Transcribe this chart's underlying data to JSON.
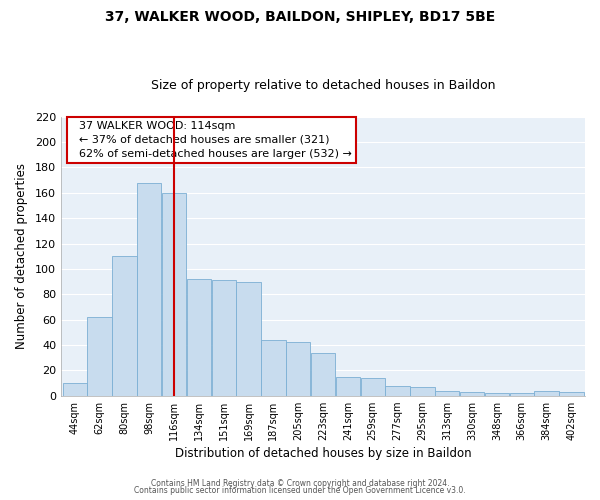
{
  "title": "37, WALKER WOOD, BAILDON, SHIPLEY, BD17 5BE",
  "subtitle": "Size of property relative to detached houses in Baildon",
  "xlabel": "Distribution of detached houses by size in Baildon",
  "ylabel": "Number of detached properties",
  "bar_color": "#c8dcee",
  "bar_edge_color": "#7bafd4",
  "background_color": "#ffffff",
  "plot_bg_color": "#e8f0f8",
  "grid_color": "#ffffff",
  "categories": [
    "44sqm",
    "62sqm",
    "80sqm",
    "98sqm",
    "116sqm",
    "134sqm",
    "151sqm",
    "169sqm",
    "187sqm",
    "205sqm",
    "223sqm",
    "241sqm",
    "259sqm",
    "277sqm",
    "295sqm",
    "313sqm",
    "330sqm",
    "348sqm",
    "366sqm",
    "384sqm",
    "402sqm"
  ],
  "values": [
    10,
    62,
    110,
    168,
    160,
    92,
    91,
    90,
    44,
    42,
    34,
    15,
    14,
    8,
    7,
    4,
    3,
    2,
    2,
    4,
    3
  ],
  "ylim": [
    0,
    220
  ],
  "yticks": [
    0,
    20,
    40,
    60,
    80,
    100,
    120,
    140,
    160,
    180,
    200,
    220
  ],
  "property_line_color": "#cc0000",
  "property_line_index": 4,
  "annotation_title": "37 WALKER WOOD: 114sqm",
  "annotation_line1": "← 37% of detached houses are smaller (321)",
  "annotation_line2": "62% of semi-detached houses are larger (532) →",
  "annotation_box_color": "#ffffff",
  "annotation_box_edge": "#cc0000",
  "footer1": "Contains HM Land Registry data © Crown copyright and database right 2024.",
  "footer2": "Contains public sector information licensed under the Open Government Licence v3.0."
}
